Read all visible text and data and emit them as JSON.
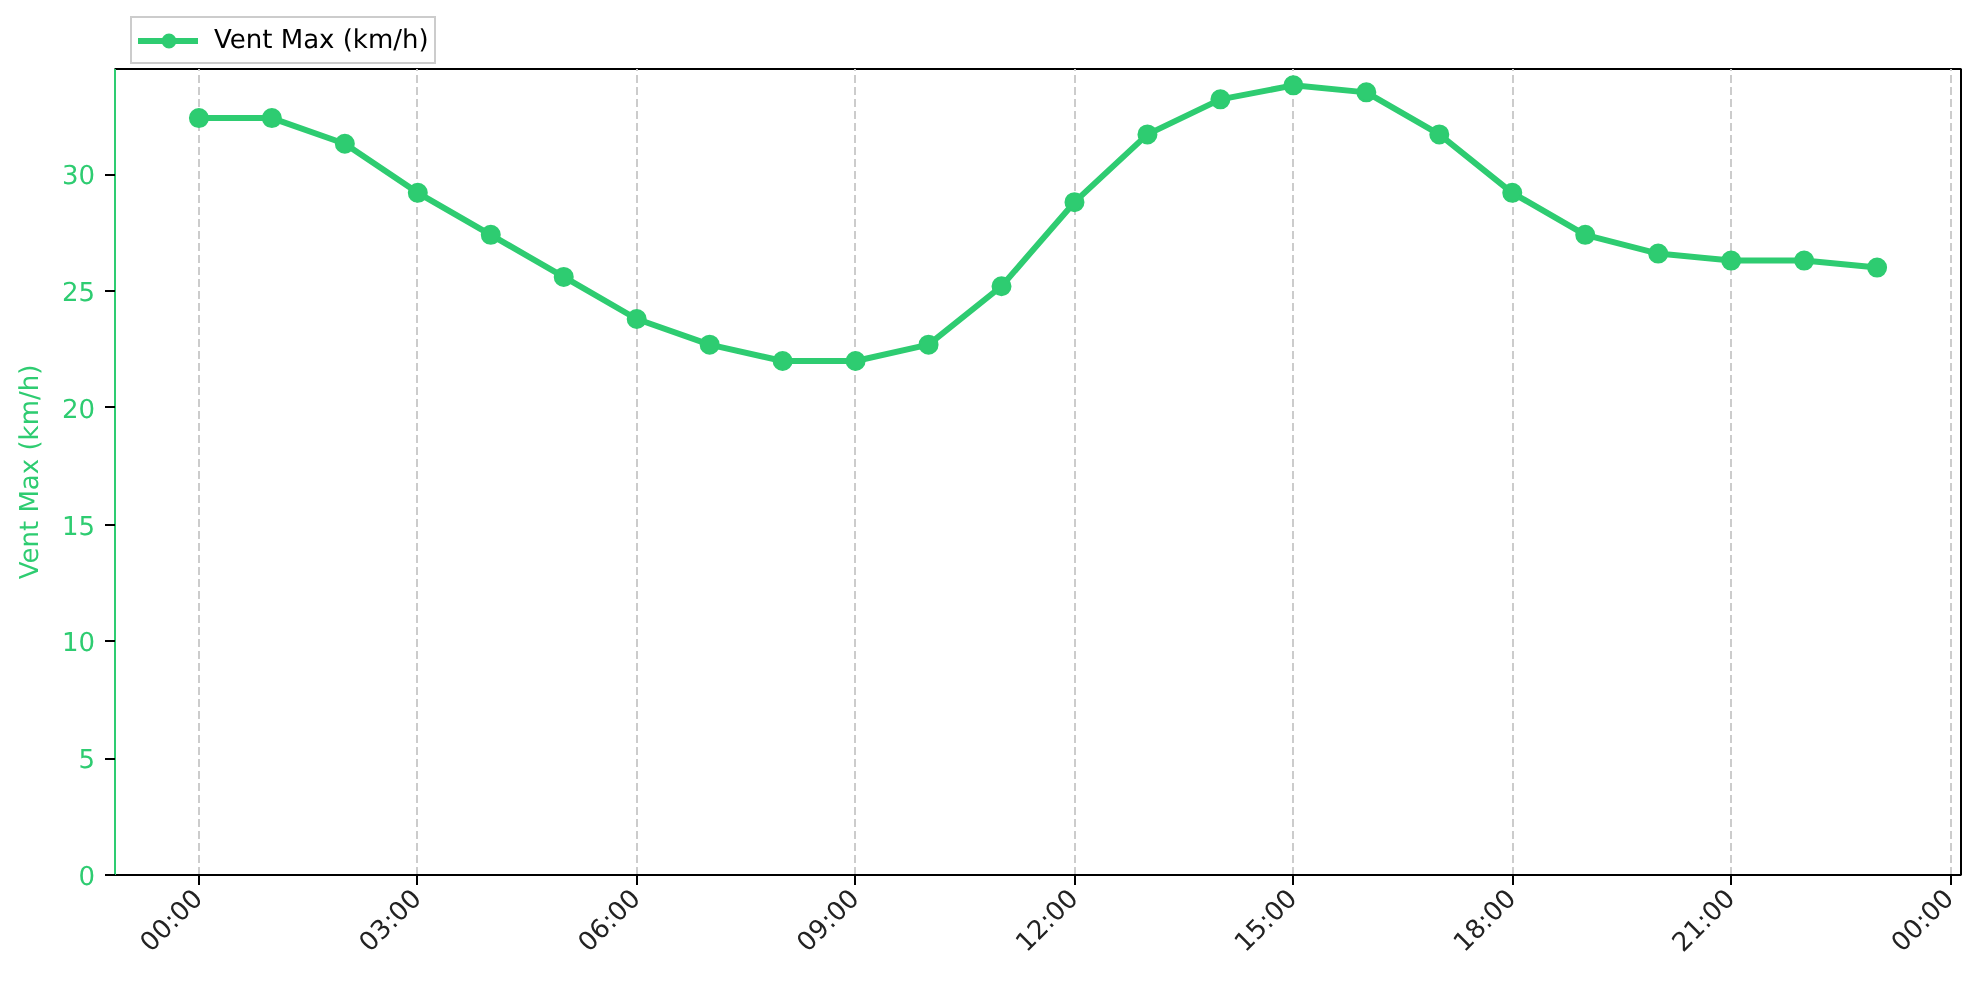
{
  "chart_data": {
    "type": "line",
    "ylabel": "Vent Max (km/h)",
    "x": [
      0,
      1,
      2,
      3,
      4,
      5,
      6,
      7,
      8,
      9,
      10,
      11,
      12,
      13,
      14,
      15,
      16,
      17,
      18,
      19,
      20,
      21,
      22,
      23
    ],
    "series": [
      {
        "name": "Vent Max (km/h)",
        "color": "#2ecc71",
        "values": [
          32.4,
          32.4,
          31.3,
          29.2,
          27.4,
          25.6,
          23.8,
          22.7,
          22.0,
          22.0,
          22.7,
          25.2,
          28.8,
          31.7,
          33.2,
          33.8,
          33.5,
          31.7,
          29.2,
          27.4,
          26.6,
          26.3,
          26.3,
          26.0
        ]
      }
    ],
    "xlim": [
      -1.15,
      24.15
    ],
    "ylim": [
      0,
      34.5
    ],
    "xticks": [
      {
        "value": 0,
        "label": "00:00"
      },
      {
        "value": 3,
        "label": "03:00"
      },
      {
        "value": 6,
        "label": "06:00"
      },
      {
        "value": 9,
        "label": "09:00"
      },
      {
        "value": 12,
        "label": "12:00"
      },
      {
        "value": 15,
        "label": "15:00"
      },
      {
        "value": 18,
        "label": "18:00"
      },
      {
        "value": 21,
        "label": "21:00"
      },
      {
        "value": 24,
        "label": "00:00"
      }
    ],
    "yticks": [
      0,
      5,
      10,
      15,
      20,
      25,
      30
    ],
    "grid": "x",
    "legend": "top left",
    "marker": "circle",
    "line_style": "solid"
  }
}
